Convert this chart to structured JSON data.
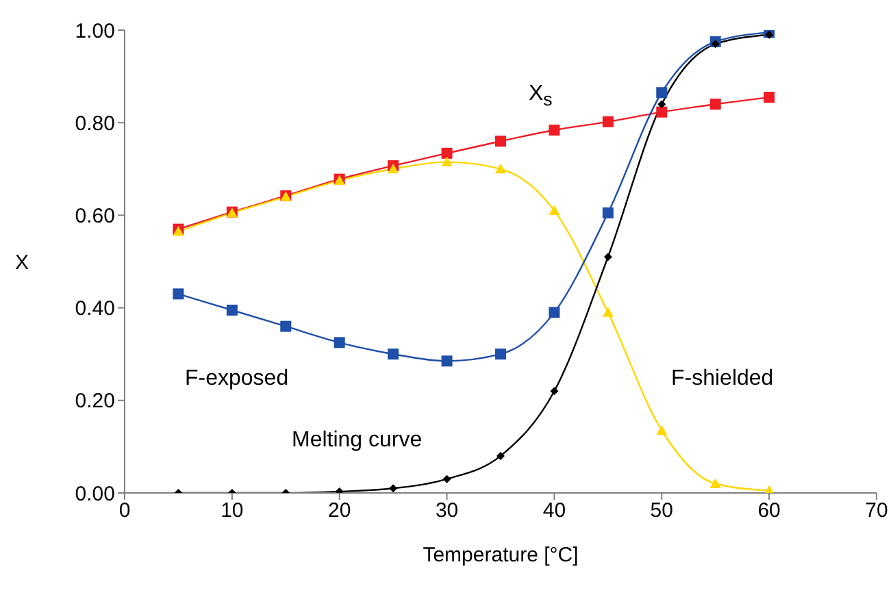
{
  "chart_data": {
    "type": "line",
    "xlabel": "Temperature [°C]",
    "ylabel": "X",
    "x": [
      5,
      10,
      15,
      20,
      25,
      30,
      35,
      40,
      45,
      50,
      55,
      60
    ],
    "series": [
      {
        "name": "X$_{s}$",
        "color": "#ee1c25",
        "marker": "square",
        "values": [
          0.57,
          0.607,
          0.642,
          0.678,
          0.707,
          0.734,
          0.76,
          0.784,
          0.802,
          0.823,
          0.84,
          0.855
        ]
      },
      {
        "name": "F-shielded",
        "color": "#ffd700",
        "marker": "triangle",
        "values": [
          0.565,
          0.605,
          0.64,
          0.675,
          0.7,
          0.715,
          0.7,
          0.61,
          0.39,
          0.135,
          0.02,
          0.005
        ]
      },
      {
        "name": "F-exposed",
        "color": "#1f4fa8",
        "marker": "square",
        "values": [
          0.43,
          0.395,
          0.36,
          0.325,
          0.3,
          0.285,
          0.3,
          0.39,
          0.605,
          0.865,
          0.975,
          0.995
        ]
      },
      {
        "name": "Melting curve",
        "color": "#000000",
        "marker": "diamond",
        "values": [
          0,
          0,
          0,
          0.003,
          0.01,
          0.03,
          0.08,
          0.22,
          0.51,
          0.84,
          0.97,
          0.99
        ]
      }
    ],
    "xlim": [
      0,
      70
    ],
    "xticks": [
      0,
      10,
      20,
      30,
      40,
      50,
      60,
      70
    ],
    "ylim": [
      0,
      1
    ],
    "yticks": [
      {
        "value": 0,
        "label": "0.00"
      },
      {
        "value": 0.2,
        "label": "0.20"
      },
      {
        "value": 0.4,
        "label": "0.40"
      },
      {
        "value": 0.6,
        "label": "0.60"
      },
      {
        "value": 0.8,
        "label": "0.80"
      },
      {
        "value": 1,
        "label": "1.00"
      }
    ],
    "grid": false,
    "legend": false
  }
}
